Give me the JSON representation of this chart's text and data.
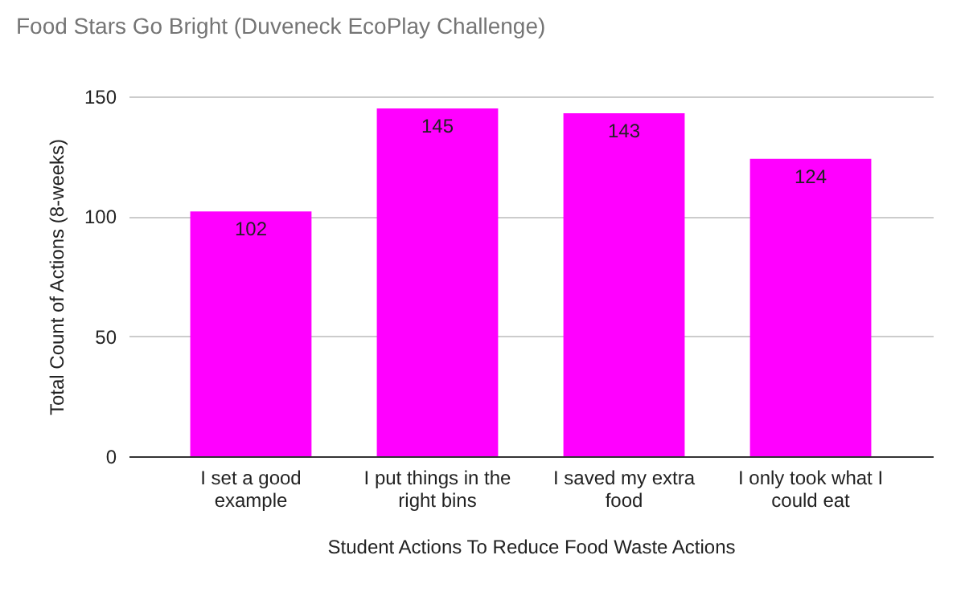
{
  "chart_data": {
    "type": "bar",
    "title": "Food Stars Go Bright (Duveneck EcoPlay Challenge)",
    "xlabel": "Student Actions To Reduce Food Waste Actions",
    "ylabel": "Total Count of Actions (8-weeks)",
    "categories": [
      "I set a good example",
      "I put things in the right bins",
      "I saved my extra food",
      "I only took what I could eat"
    ],
    "values": [
      102,
      145,
      143,
      124
    ],
    "color": "#ff00ff",
    "ylim": [
      0,
      150
    ],
    "yticks": [
      0,
      50,
      100,
      150
    ],
    "grid": "y",
    "data_labels": true
  }
}
